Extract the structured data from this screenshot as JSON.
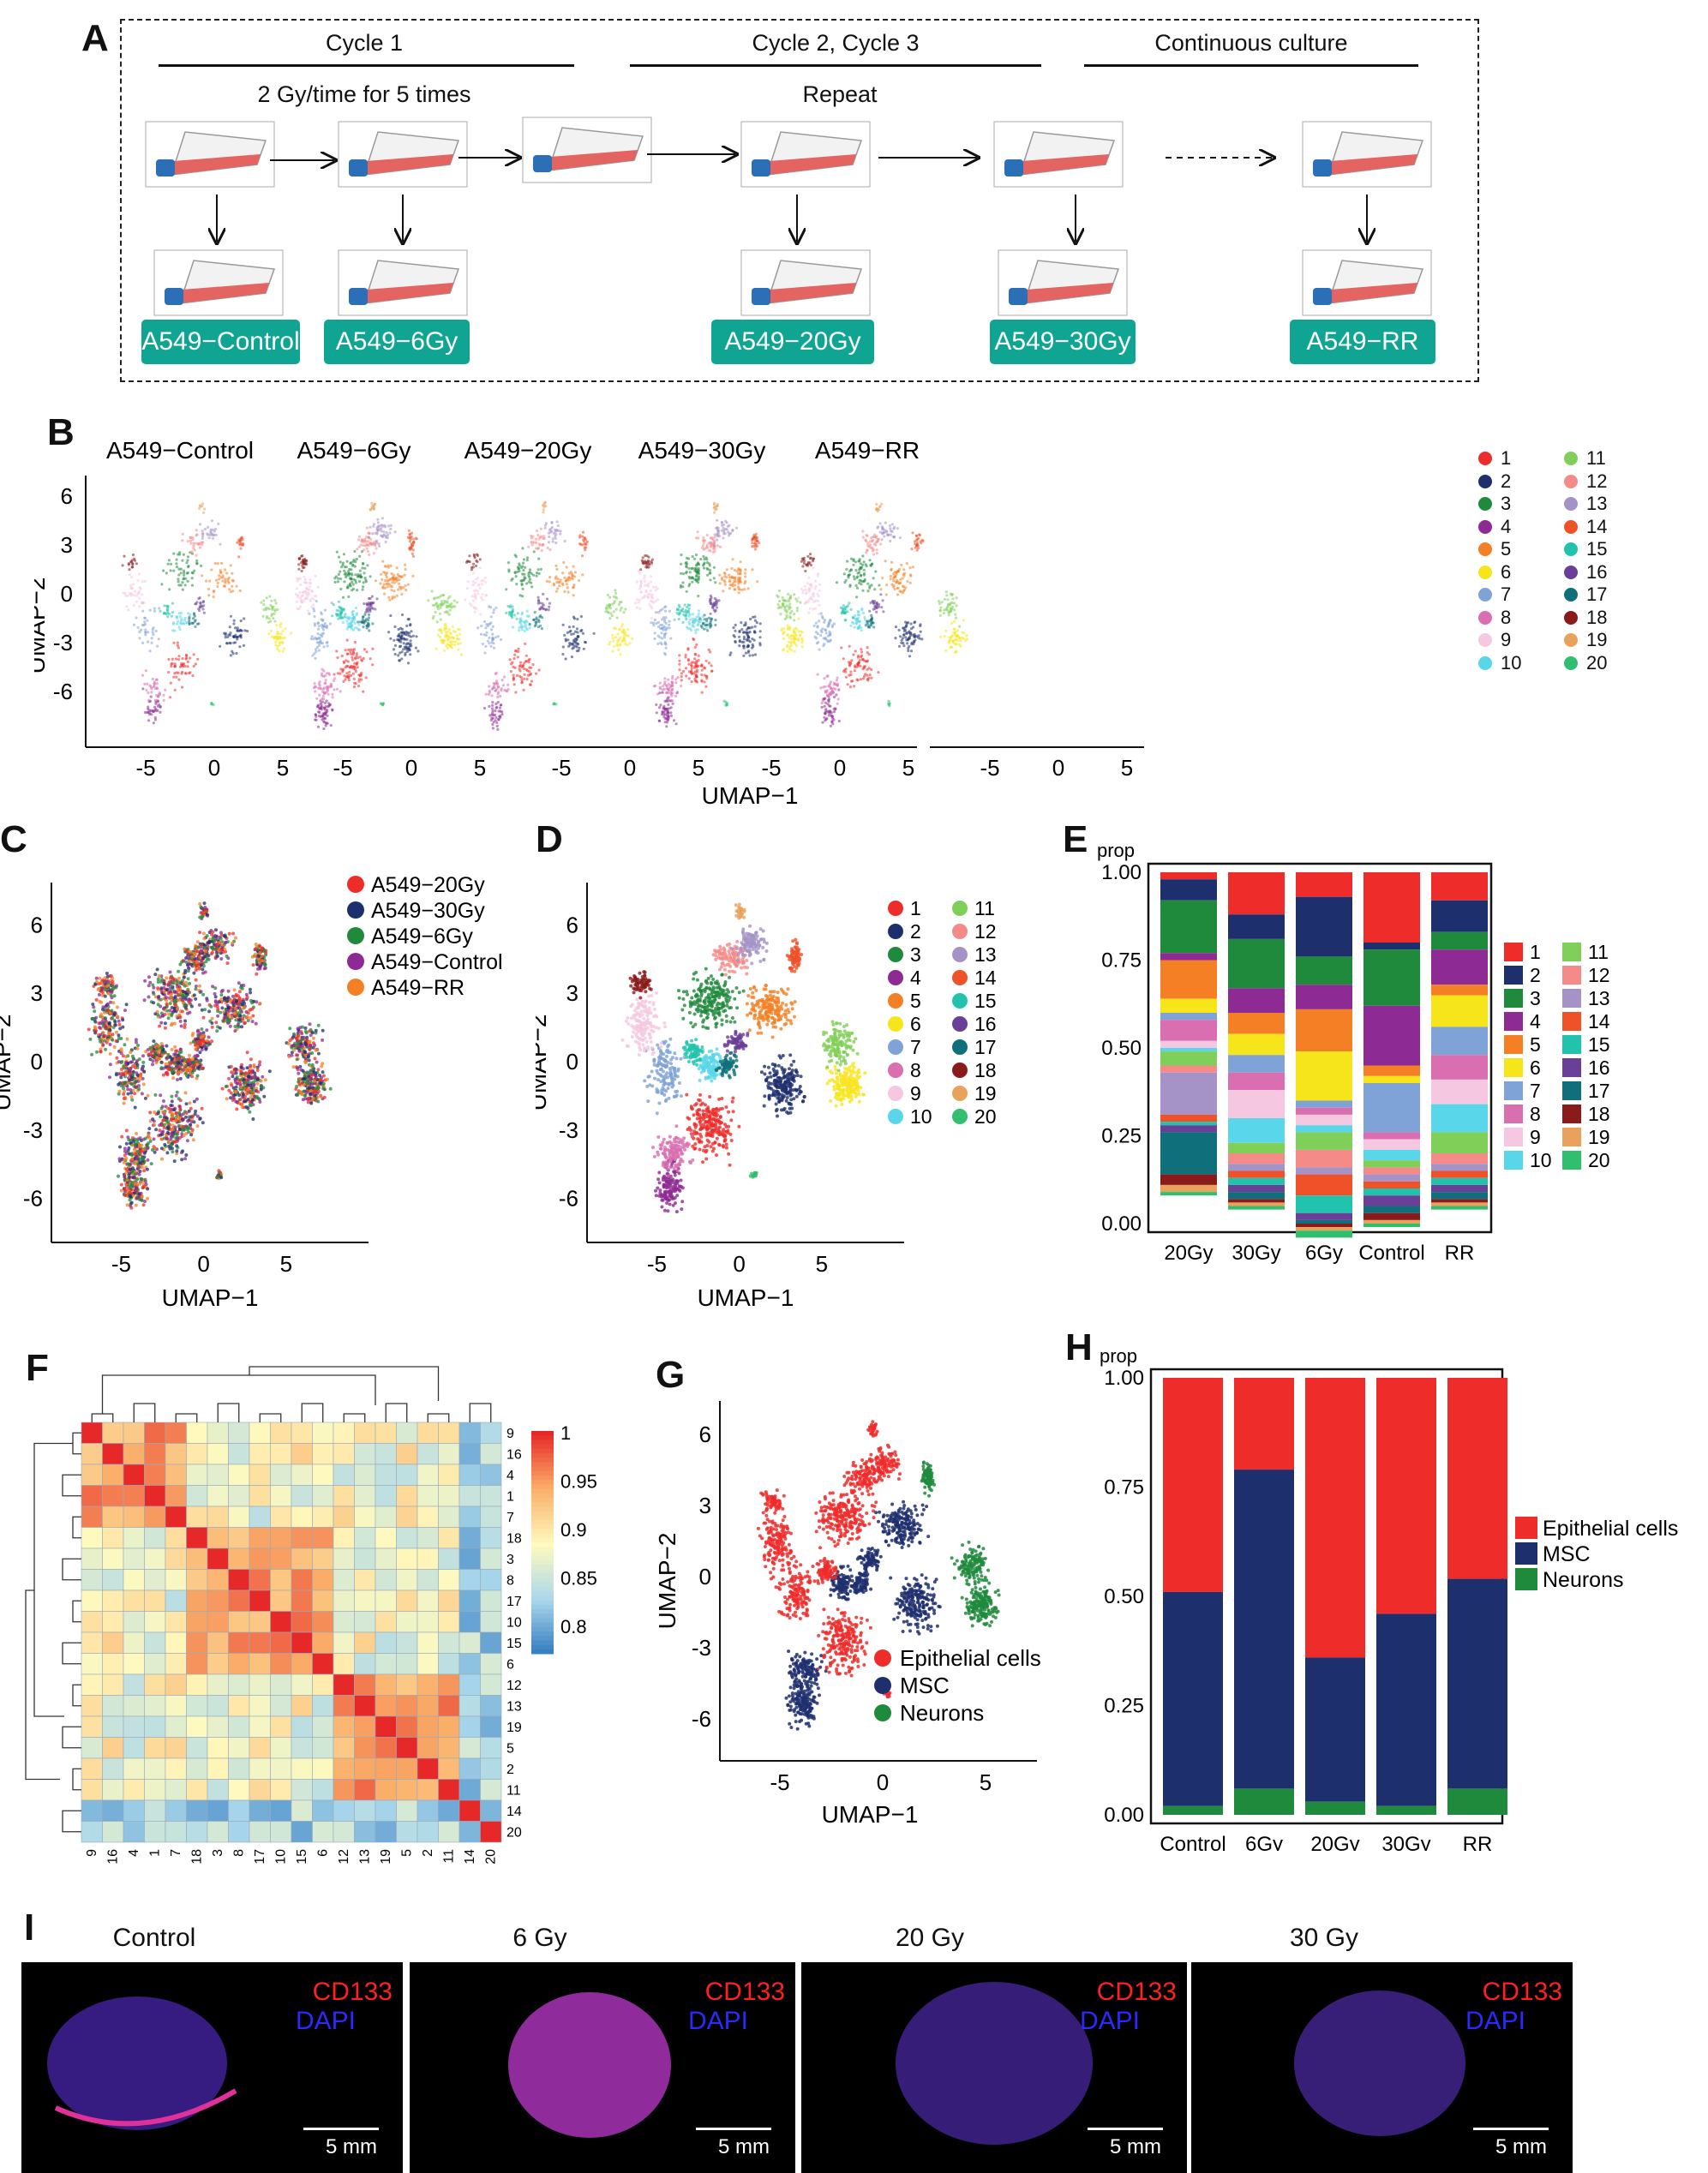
{
  "panels": {
    "A": "A",
    "B": "B",
    "C": "C",
    "D": "D",
    "E": "E",
    "F": "F",
    "G": "G",
    "H": "H",
    "I": "I"
  },
  "panel_a": {
    "cycle1": "Cycle 1",
    "cycle23": "Cycle 2, Cycle 3",
    "continuous": "Continuous culture",
    "dose": "2 Gy/time for 5 times",
    "repeat": "Repeat",
    "badges": [
      "A549−Control",
      "A549−6Gy",
      "A549−20Gy",
      "A549−30Gy",
      "A549−RR"
    ]
  },
  "panel_b": {
    "titles": [
      "A549−Control",
      "A549−6Gy",
      "A549−20Gy",
      "A549−30Gy",
      "A549−RR"
    ],
    "xlabel": "UMAP−1",
    "ylabel": "UMAP−2",
    "yticks": [
      "6",
      "3",
      "0",
      "-3",
      "-6"
    ],
    "xticks": [
      "-5",
      "0",
      "5"
    ]
  },
  "clusters": [
    {
      "id": "1",
      "color": "#ee2d2b"
    },
    {
      "id": "2",
      "color": "#1e2f6e"
    },
    {
      "id": "3",
      "color": "#1f8a3c"
    },
    {
      "id": "4",
      "color": "#8e2a93"
    },
    {
      "id": "5",
      "color": "#f47f24"
    },
    {
      "id": "6",
      "color": "#f7e51b"
    },
    {
      "id": "7",
      "color": "#7fa3d6"
    },
    {
      "id": "8",
      "color": "#d96eb0"
    },
    {
      "id": "9",
      "color": "#f5c7e0"
    },
    {
      "id": "10",
      "color": "#5ad6ea"
    },
    {
      "id": "11",
      "color": "#7fcf58"
    },
    {
      "id": "12",
      "color": "#f58b88"
    },
    {
      "id": "13",
      "color": "#a593c8"
    },
    {
      "id": "14",
      "color": "#ef5128"
    },
    {
      "id": "15",
      "color": "#22c3ad"
    },
    {
      "id": "16",
      "color": "#6a3f98"
    },
    {
      "id": "17",
      "color": "#0f6f7a"
    },
    {
      "id": "18",
      "color": "#8b1a1a"
    },
    {
      "id": "19",
      "color": "#e8a25c"
    },
    {
      "id": "20",
      "color": "#2fbf6f"
    }
  ],
  "panel_c": {
    "legend": [
      {
        "name": "A549−20Gy",
        "color": "#ee2d2b"
      },
      {
        "name": "A549−30Gy",
        "color": "#1e2f6e"
      },
      {
        "name": "A549−6Gy",
        "color": "#1f8a3c"
      },
      {
        "name": "A549−Control",
        "color": "#8e2a93"
      },
      {
        "name": "A549−RR",
        "color": "#f47f24"
      }
    ],
    "xlabel": "UMAP−1",
    "ylabel": "UMAP−2",
    "yticks": [
      "6",
      "3",
      "0",
      "-3",
      "-6"
    ],
    "xticks": [
      "-5",
      "0",
      "5"
    ]
  },
  "panel_d": {
    "xlabel": "UMAP−1",
    "ylabel": "UMAP−2",
    "yticks": [
      "6",
      "3",
      "0",
      "-3",
      "-6"
    ],
    "xticks": [
      "-5",
      "0",
      "5"
    ]
  },
  "panel_f": {
    "order": [
      "9",
      "16",
      "4",
      "1",
      "7",
      "18",
      "3",
      "8",
      "17",
      "10",
      "15",
      "6",
      "12",
      "13",
      "19",
      "5",
      "2",
      "11",
      "14",
      "20"
    ],
    "colorbar": [
      "1",
      "0.95",
      "0.9",
      "0.85",
      "0.8"
    ]
  },
  "panel_g": {
    "legend": [
      {
        "name": "Epithelial cells",
        "color": "#ee2d2b"
      },
      {
        "name": "MSC",
        "color": "#1e2f6e"
      },
      {
        "name": "Neurons",
        "color": "#1f8a3c"
      }
    ],
    "xlabel": "UMAP−1",
    "ylabel": "UMAP−2",
    "yticks": [
      "6",
      "3",
      "0",
      "-3",
      "-6"
    ],
    "xticks": [
      "-5",
      "0",
      "5"
    ]
  },
  "panel_i": {
    "titles": [
      "Control",
      "6 Gy",
      "20 Gy",
      "30 Gy"
    ],
    "marker": "CD133",
    "stain": "DAPI",
    "scale": "5 mm"
  },
  "chart_data": [
    {
      "type": "bar",
      "title": "E",
      "ylabel": "prop",
      "categories": [
        "20Gy",
        "30Gy",
        "6Gy",
        "Control",
        "RR"
      ],
      "yticks": [
        "1.00",
        "0.75",
        "0.50",
        "0.25",
        "0.00"
      ],
      "ylim": [
        0,
        1
      ],
      "stack_order_top_to_bottom": [
        "1",
        "2",
        "3",
        "4",
        "5",
        "6",
        "7",
        "8",
        "9",
        "10",
        "11",
        "12",
        "13",
        "14",
        "15",
        "16",
        "17",
        "18",
        "19",
        "20"
      ],
      "series": [
        {
          "name": "1",
          "values": [
            0.02,
            0.12,
            0.07,
            0.2,
            0.08
          ]
        },
        {
          "name": "2",
          "values": [
            0.06,
            0.07,
            0.17,
            0.02,
            0.09
          ]
        },
        {
          "name": "3",
          "values": [
            0.15,
            0.14,
            0.08,
            0.16,
            0.05
          ]
        },
        {
          "name": "4",
          "values": [
            0.02,
            0.07,
            0.07,
            0.17,
            0.1
          ]
        },
        {
          "name": "5",
          "values": [
            0.11,
            0.06,
            0.12,
            0.03,
            0.03
          ]
        },
        {
          "name": "6",
          "values": [
            0.04,
            0.06,
            0.14,
            0.02,
            0.09
          ]
        },
        {
          "name": "7",
          "values": [
            0.02,
            0.05,
            0.02,
            0.14,
            0.08
          ]
        },
        {
          "name": "8",
          "values": [
            0.06,
            0.05,
            0.02,
            0.02,
            0.07
          ]
        },
        {
          "name": "9",
          "values": [
            0.02,
            0.08,
            0.03,
            0.03,
            0.07
          ]
        },
        {
          "name": "10",
          "values": [
            0.01,
            0.07,
            0.02,
            0.03,
            0.08
          ]
        },
        {
          "name": "11",
          "values": [
            0.04,
            0.03,
            0.05,
            0.02,
            0.06
          ]
        },
        {
          "name": "12",
          "values": [
            0.02,
            0.03,
            0.05,
            0.02,
            0.03
          ]
        },
        {
          "name": "13",
          "values": [
            0.12,
            0.02,
            0.02,
            0.02,
            0.02
          ]
        },
        {
          "name": "14",
          "values": [
            0.02,
            0.02,
            0.06,
            0.02,
            0.02
          ]
        },
        {
          "name": "15",
          "values": [
            0.01,
            0.02,
            0.05,
            0.02,
            0.02
          ]
        },
        {
          "name": "16",
          "values": [
            0.02,
            0.02,
            0.02,
            0.03,
            0.02
          ]
        },
        {
          "name": "17",
          "values": [
            0.12,
            0.02,
            0.01,
            0.02,
            0.02
          ]
        },
        {
          "name": "18",
          "values": [
            0.03,
            0.01,
            0.01,
            0.02,
            0.01
          ]
        },
        {
          "name": "19",
          "values": [
            0.02,
            0.01,
            0.01,
            0.01,
            0.01
          ]
        },
        {
          "name": "20",
          "values": [
            0.01,
            0.01,
            0.02,
            0.01,
            0.01
          ]
        }
      ]
    },
    {
      "type": "bar",
      "title": "H",
      "ylabel": "prop",
      "categories": [
        "Control",
        "6Gy",
        "20Gy",
        "30Gy",
        "RR"
      ],
      "yticks": [
        "1.00",
        "0.75",
        "0.50",
        "0.25",
        "0.00"
      ],
      "ylim": [
        0,
        1
      ],
      "series": [
        {
          "name": "Epithelial cells",
          "values": [
            0.49,
            0.21,
            0.64,
            0.54,
            0.46
          ]
        },
        {
          "name": "MSC",
          "values": [
            0.49,
            0.73,
            0.33,
            0.44,
            0.48
          ]
        },
        {
          "name": "Neurons",
          "values": [
            0.02,
            0.06,
            0.03,
            0.02,
            0.06
          ]
        }
      ]
    }
  ]
}
